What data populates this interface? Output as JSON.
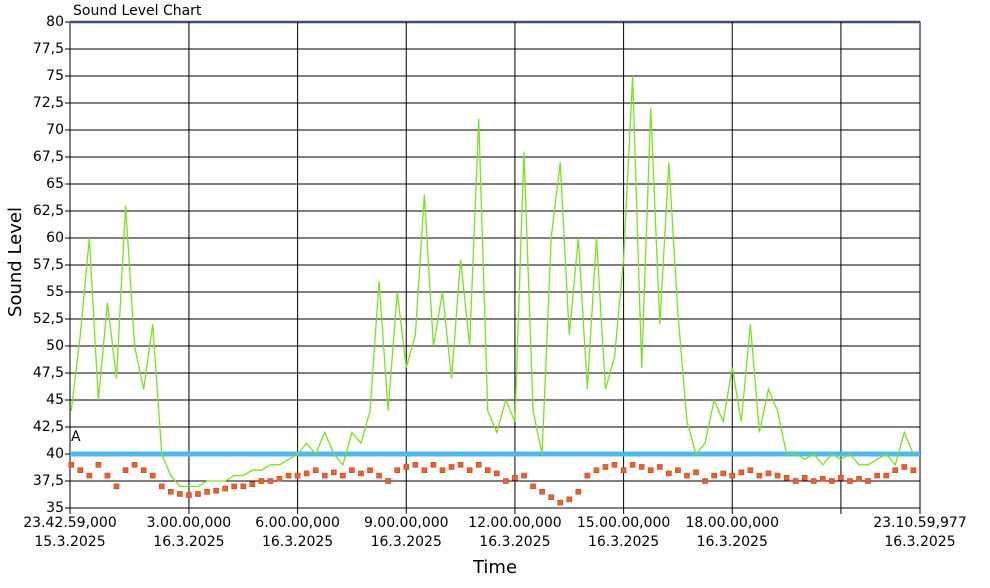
{
  "chart_data": {
    "type": "line",
    "title": "Sound Level Chart",
    "y_label": "Sound Level",
    "x_label": "Time",
    "x": [
      -0.25,
      0,
      0.25,
      0.5,
      0.75,
      1,
      1.25,
      1.5,
      1.75,
      2,
      2.25,
      2.5,
      2.75,
      3,
      3.25,
      3.5,
      3.75,
      4,
      4.25,
      4.5,
      4.75,
      5,
      5.25,
      5.5,
      5.75,
      6,
      6.25,
      6.5,
      6.75,
      7,
      7.25,
      7.5,
      7.75,
      8,
      8.25,
      8.5,
      8.75,
      9,
      9.25,
      9.5,
      9.75,
      10,
      10.25,
      10.5,
      10.75,
      11,
      11.25,
      11.5,
      11.75,
      12,
      12.25,
      12.5,
      12.75,
      13,
      13.25,
      13.5,
      13.75,
      14,
      14.25,
      14.5,
      14.75,
      15,
      15.25,
      15.5,
      15.75,
      16,
      16.25,
      16.5,
      16.75,
      17,
      17.25,
      17.5,
      17.75,
      18,
      18.25,
      18.5,
      18.75,
      19,
      19.25,
      19.5,
      19.75,
      20,
      20.25,
      20.5,
      20.75,
      21,
      21.25,
      21.5,
      21.75,
      22,
      22.25,
      22.5,
      22.75,
      23
    ],
    "series": [
      {
        "style": "line",
        "color": "#77e51c",
        "values": [
          44,
          51,
          60,
          45,
          54,
          47,
          63,
          50,
          46,
          52,
          40,
          38,
          37,
          37,
          37,
          37.5,
          37.5,
          37.5,
          38,
          38,
          38.5,
          38.5,
          39,
          39,
          39.5,
          40,
          41,
          40,
          42,
          40,
          39,
          42,
          41,
          44,
          56,
          44,
          55,
          48,
          51,
          64,
          50,
          55,
          47,
          58,
          50,
          71,
          44,
          42,
          45,
          43,
          68,
          44,
          40,
          60,
          67,
          51,
          60,
          46,
          60,
          46,
          49,
          58,
          75,
          48,
          72,
          52,
          67,
          53,
          43,
          40,
          41,
          45,
          43,
          48,
          43,
          52,
          42,
          46,
          44,
          40,
          40,
          39.5,
          40,
          39,
          40,
          39.5,
          40,
          39,
          39,
          39.5,
          40,
          39,
          42,
          40
        ]
      },
      {
        "style": "markers",
        "color": "#e8632a",
        "values": [
          39,
          38.5,
          38,
          39,
          38,
          37,
          38.5,
          39,
          38.5,
          38,
          37,
          36.5,
          36.3,
          36.2,
          36.3,
          36.5,
          36.6,
          36.8,
          37,
          37,
          37.2,
          37.5,
          37.5,
          37.7,
          38,
          38,
          38.2,
          38.5,
          38,
          38.3,
          38,
          38.5,
          38.2,
          38.5,
          38,
          37.5,
          38.5,
          38.8,
          39,
          38.5,
          39,
          38.5,
          38.8,
          39,
          38.5,
          39,
          38.5,
          38.2,
          37.5,
          37.8,
          38,
          37,
          36.5,
          36,
          35.5,
          35.8,
          36.5,
          38,
          38.5,
          38.8,
          39,
          38.5,
          39,
          38.8,
          38.5,
          38.8,
          38.2,
          38.5,
          38,
          38.3,
          37.5,
          38,
          38.2,
          38,
          38.3,
          38.5,
          38,
          38.2,
          38,
          37.8,
          37.5,
          37.8,
          37.5,
          37.7,
          37.5,
          37.8,
          37.5,
          37.7,
          37.5,
          38,
          38,
          38.5,
          38.8,
          38.5
        ]
      }
    ],
    "threshold": {
      "label": "A",
      "value": 40,
      "color": "#4fb8ec"
    },
    "xlim": [
      {
        "value": -0.28361,
        "label": "23.42.59,000\n15.3.2025"
      },
      {
        "value": 23.18333,
        "label": "23.10.59,977\n16.3.2025"
      }
    ],
    "xticks": [
      {
        "value": 3,
        "label": "3.00.00,000\n16.3.2025"
      },
      {
        "value": 6,
        "label": "6.00.00,000\n16.3.2025"
      },
      {
        "value": 9,
        "label": "9.00.00,000\n16.3.2025"
      },
      {
        "value": 12,
        "label": "12.00.00,000\n16.3.2025"
      },
      {
        "value": 15,
        "label": "15.00.00,000\n16.3.2025"
      },
      {
        "value": 18,
        "label": "18.00.00,000\n16.3.2025"
      },
      {
        "value": 21,
        "label": null
      }
    ],
    "ylim": [
      35,
      80
    ],
    "yticks": [
      35,
      {
        "value": 37.5,
        "label": "37,5"
      },
      40,
      {
        "value": 42.5,
        "label": "42,5"
      },
      45,
      {
        "value": 47.5,
        "label": "47,5"
      },
      50,
      {
        "value": 52.5,
        "label": "52,5"
      },
      55,
      {
        "value": 57.5,
        "label": "57,5"
      },
      60,
      {
        "value": 62.5,
        "label": "62,5"
      },
      65,
      {
        "value": 67.5,
        "label": "67,5"
      },
      70,
      {
        "value": 72.5,
        "label": "72,5"
      },
      75,
      {
        "value": 77.5,
        "label": "77,5"
      },
      80
    ],
    "grid": true
  }
}
